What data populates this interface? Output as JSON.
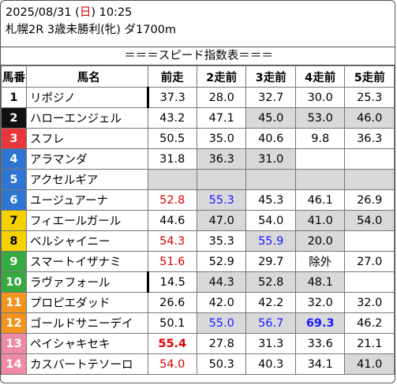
{
  "header": {
    "date_prefix": "2025/08/31 (",
    "dow": "日",
    "date_suffix": ") 10:25",
    "race_line": "札幌2R 3歳未勝利(牝) ダ1700m"
  },
  "section_title": "＝＝＝スピード指数表＝＝＝",
  "columns": {
    "num": "馬番",
    "name": "馬名",
    "r1": "前走",
    "r2": "2走前",
    "r3": "3走前",
    "r4": "4走前",
    "r5": "5走前"
  },
  "rows": [
    {
      "num": "1",
      "name": "リポジノ",
      "r1": "37.3",
      "r2": "28.0",
      "r3": "32.7",
      "r4": "30.0",
      "r5": "25.3"
    },
    {
      "num": "2",
      "name": "ハローエンジェル",
      "r1": "43.2",
      "r2": "47.1",
      "r3": "45.0",
      "r4": "53.0",
      "r5": "46.0"
    },
    {
      "num": "3",
      "name": "スフレ",
      "r1": "50.5",
      "r2": "35.0",
      "r3": "40.6",
      "r4": "9.8",
      "r5": "36.3"
    },
    {
      "num": "4",
      "name": "アラマンダ",
      "r1": "31.8",
      "r2": "36.3",
      "r3": "31.0",
      "r4": "",
      "r5": ""
    },
    {
      "num": "5",
      "name": "アクセルギア",
      "r1": "",
      "r2": "",
      "r3": "",
      "r4": "",
      "r5": ""
    },
    {
      "num": "6",
      "name": "ユージュアーナ",
      "r1": "52.8",
      "r2": "55.3",
      "r3": "45.3",
      "r4": "46.1",
      "r5": "26.9"
    },
    {
      "num": "7",
      "name": "フィエールガール",
      "r1": "44.6",
      "r2": "47.0",
      "r3": "54.0",
      "r4": "41.0",
      "r5": "54.0"
    },
    {
      "num": "8",
      "name": "ベルシャイニー",
      "r1": "54.3",
      "r2": "35.3",
      "r3": "55.9",
      "r4": "20.0",
      "r5": ""
    },
    {
      "num": "9",
      "name": "スマートイザナミ",
      "r1": "51.6",
      "r2": "52.9",
      "r3": "29.7",
      "r4": "除外",
      "r5": "27.0"
    },
    {
      "num": "10",
      "name": "ラヴァフォール",
      "r1": "14.5",
      "r2": "44.3",
      "r3": "52.8",
      "r4": "48.1",
      "r5": ""
    },
    {
      "num": "11",
      "name": "プロピエダッド",
      "r1": "26.6",
      "r2": "42.0",
      "r3": "42.2",
      "r4": "32.0",
      "r5": "32.0"
    },
    {
      "num": "12",
      "name": "ゴールドサニーデイ",
      "r1": "50.1",
      "r2": "55.0",
      "r3": "56.7",
      "r4": "69.3",
      "r5": "46.2"
    },
    {
      "num": "13",
      "name": "ペイシャキセキ",
      "r1": "55.4",
      "r2": "27.8",
      "r3": "31.3",
      "r4": "33.6",
      "r5": "21.1"
    },
    {
      "num": "14",
      "name": "カスバートテソーロ",
      "r1": "54.0",
      "r2": "50.3",
      "r3": "40.3",
      "r4": "34.1",
      "r5": "41.0"
    }
  ]
}
